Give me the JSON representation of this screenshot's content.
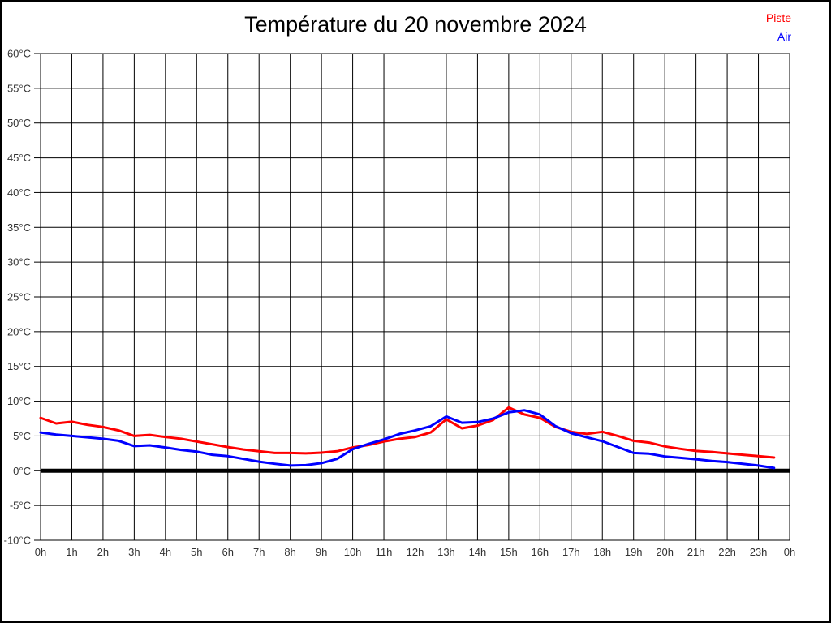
{
  "title": "Température du 20 novembre 2024",
  "legend": [
    {
      "label": "Piste",
      "color": "#ff0000"
    },
    {
      "label": "Air",
      "color": "#0000ff"
    }
  ],
  "chart_data": {
    "type": "line",
    "title": "Température du 20 novembre 2024",
    "xlabel": "",
    "ylabel": "",
    "xlim": [
      0,
      24
    ],
    "ylim": [
      -10,
      60
    ],
    "grid": true,
    "legend_position": "top-right",
    "zero_line_value": 0,
    "x_tick_values": [
      0,
      1,
      2,
      3,
      4,
      5,
      6,
      7,
      8,
      9,
      10,
      11,
      12,
      13,
      14,
      15,
      16,
      17,
      18,
      19,
      20,
      21,
      22,
      23,
      24
    ],
    "x_tick_labels": [
      "0h",
      "1h",
      "2h",
      "3h",
      "4h",
      "5h",
      "6h",
      "7h",
      "8h",
      "9h",
      "10h",
      "11h",
      "12h",
      "13h",
      "14h",
      "15h",
      "16h",
      "17h",
      "18h",
      "19h",
      "20h",
      "21h",
      "22h",
      "23h",
      "0h"
    ],
    "y_tick_values": [
      -10,
      -5,
      0,
      5,
      10,
      15,
      20,
      25,
      30,
      35,
      40,
      45,
      50,
      55,
      60
    ],
    "y_tick_labels": [
      "-10°C",
      "-5°C",
      "0°C",
      "5°C",
      "10°C",
      "15°C",
      "20°C",
      "25°C",
      "30°C",
      "35°C",
      "40°C",
      "45°C",
      "50°C",
      "55°C",
      "60°C"
    ],
    "x": [
      0,
      0.5,
      1,
      1.5,
      2,
      2.5,
      3,
      3.5,
      4,
      4.5,
      5,
      5.5,
      6,
      6.5,
      7,
      7.5,
      8,
      8.5,
      9,
      9.5,
      10,
      10.5,
      11,
      11.5,
      12,
      12.5,
      13,
      13.5,
      14,
      14.5,
      15,
      15.5,
      16,
      16.5,
      17,
      17.5,
      18,
      18.5,
      19,
      19.5,
      20,
      20.5,
      21,
      21.5,
      22,
      22.5,
      23,
      23.5
    ],
    "series": [
      {
        "name": "Piste",
        "color": "#ff0000",
        "values": [
          7.6,
          6.8,
          7.05,
          6.6,
          6.3,
          5.8,
          5.0,
          5.15,
          4.85,
          4.6,
          4.2,
          3.8,
          3.4,
          3.05,
          2.8,
          2.55,
          2.55,
          2.5,
          2.6,
          2.8,
          3.35,
          3.7,
          4.2,
          4.6,
          4.85,
          5.5,
          7.4,
          6.1,
          6.5,
          7.3,
          9.1,
          8.1,
          7.6,
          6.3,
          5.6,
          5.3,
          5.6,
          5.0,
          4.3,
          4.05,
          3.5,
          3.15,
          2.85,
          2.7,
          2.5,
          2.3,
          2.1,
          1.9
        ]
      },
      {
        "name": "Air",
        "color": "#0000ff",
        "values": [
          5.5,
          5.2,
          5.0,
          4.8,
          4.6,
          4.3,
          3.55,
          3.65,
          3.35,
          3.0,
          2.75,
          2.3,
          2.1,
          1.7,
          1.3,
          1.0,
          0.75,
          0.8,
          1.1,
          1.7,
          3.1,
          3.85,
          4.5,
          5.3,
          5.8,
          6.4,
          7.8,
          6.9,
          7.0,
          7.5,
          8.4,
          8.7,
          8.1,
          6.4,
          5.4,
          4.8,
          4.25,
          3.4,
          2.55,
          2.45,
          2.05,
          1.85,
          1.65,
          1.4,
          1.25,
          1.0,
          0.75,
          0.4
        ]
      }
    ]
  }
}
